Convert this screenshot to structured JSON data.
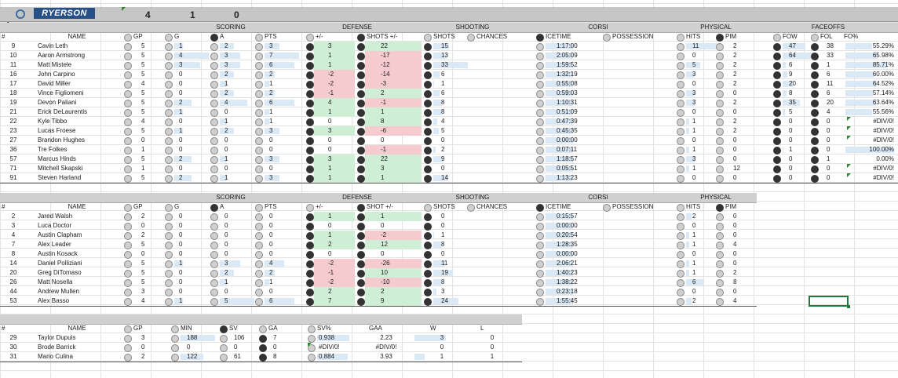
{
  "logo_text": "RYERSON",
  "top_numbers": [
    "4",
    "1",
    "0"
  ],
  "skaters_section": {
    "group_headers": [
      {
        "label": "SCORING"
      },
      {
        "label": "DEFENSE"
      },
      {
        "label": "SHOOTING"
      },
      {
        "label": "CORSI"
      },
      {
        "label": "PHYSICAL"
      },
      {
        "label": "FACEOFFS"
      }
    ],
    "columns": [
      "#",
      "NAME",
      "GP",
      "G",
      "A",
      "PTS",
      "+/-",
      "SHOTS +/-",
      "SHOTS",
      "CHANCES",
      "ICETIME",
      "POSSESSION",
      "HITS",
      "PIM",
      "FOW",
      "FOL",
      "FO%"
    ],
    "rows": [
      {
        "num": "9",
        "name": "Cavin Leth",
        "gp": "5",
        "g": "1",
        "a": "2",
        "pts": "3",
        "pm": "3",
        "spm": "22",
        "shots": "15",
        "icetime": "1:17:00",
        "hits": "11",
        "pim": "2",
        "fow": "47",
        "fol": "38",
        "fo": "55.29%"
      },
      {
        "num": "10",
        "name": "Aaron Armstrong",
        "gp": "5",
        "g": "4",
        "a": "3",
        "pts": "7",
        "pm": "1",
        "spm": "-17",
        "shots": "13",
        "icetime": "2:05:09",
        "hits": "0",
        "pim": "2",
        "fow": "64",
        "fol": "33",
        "fo": "65.98%"
      },
      {
        "num": "11",
        "name": "Matt Mistele",
        "gp": "5",
        "g": "3",
        "a": "3",
        "pts": "6",
        "pm": "1",
        "spm": "-12",
        "shots": "33",
        "icetime": "1:59:52",
        "hits": "5",
        "pim": "2",
        "fow": "6",
        "fol": "1",
        "fo": "85.71%"
      },
      {
        "num": "16",
        "name": "John Carpino",
        "gp": "5",
        "g": "0",
        "a": "2",
        "pts": "2",
        "pm": "-2",
        "spm": "-14",
        "shots": "6",
        "icetime": "1:32:19",
        "hits": "3",
        "pim": "2",
        "fow": "9",
        "fol": "6",
        "fo": "60.00%"
      },
      {
        "num": "17",
        "name": "David Miller",
        "gp": "4",
        "g": "0",
        "a": "1",
        "pts": "1",
        "pm": "-2",
        "spm": "-3",
        "shots": "1",
        "icetime": "0:55:08",
        "hits": "0",
        "pim": "2",
        "fow": "20",
        "fol": "11",
        "fo": "64.52%"
      },
      {
        "num": "18",
        "name": "Vince Figliomeni",
        "gp": "5",
        "g": "0",
        "a": "2",
        "pts": "2",
        "pm": "-1",
        "spm": "2",
        "shots": "6",
        "icetime": "0:59:03",
        "hits": "3",
        "pim": "0",
        "fow": "8",
        "fol": "6",
        "fo": "57.14%"
      },
      {
        "num": "19",
        "name": "Devon Paliani",
        "gp": "5",
        "g": "2",
        "a": "4",
        "pts": "6",
        "pm": "4",
        "spm": "-1",
        "shots": "8",
        "icetime": "1:10:31",
        "hits": "3",
        "pim": "2",
        "fow": "35",
        "fol": "20",
        "fo": "63.64%"
      },
      {
        "num": "21",
        "name": "Erick DeLaurentis",
        "gp": "5",
        "g": "1",
        "a": "0",
        "pts": "1",
        "pm": "1",
        "spm": "1",
        "shots": "8",
        "icetime": "0:51:09",
        "hits": "0",
        "pim": "0",
        "fow": "5",
        "fol": "4",
        "fo": "55.56%"
      },
      {
        "num": "22",
        "name": "Kyle Tibbo",
        "gp": "4",
        "g": "0",
        "a": "1",
        "pts": "1",
        "pm": "0",
        "spm": "8",
        "shots": "4",
        "icetime": "0:47:39",
        "hits": "1",
        "pim": "2",
        "fow": "0",
        "fol": "0",
        "fo": "#DIV/0!"
      },
      {
        "num": "23",
        "name": "Lucas Froese",
        "gp": "5",
        "g": "1",
        "a": "2",
        "pts": "3",
        "pm": "3",
        "spm": "-6",
        "shots": "5",
        "icetime": "0:45:35",
        "hits": "1",
        "pim": "2",
        "fow": "0",
        "fol": "0",
        "fo": "#DIV/0!"
      },
      {
        "num": "27",
        "name": "Brandon Hughes",
        "gp": "0",
        "g": "0",
        "a": "0",
        "pts": "0",
        "pm": "0",
        "spm": "0",
        "shots": "0",
        "icetime": "0:00:00",
        "hits": "0",
        "pim": "0",
        "fow": "0",
        "fol": "0",
        "fo": "#DIV/0!"
      },
      {
        "num": "36",
        "name": "Tre Folkes",
        "gp": "1",
        "g": "0",
        "a": "0",
        "pts": "0",
        "pm": "0",
        "spm": "-1",
        "shots": "2",
        "icetime": "0:07:11",
        "hits": "1",
        "pim": "0",
        "fow": "1",
        "fol": "0",
        "fo": "100.00%"
      },
      {
        "num": "57",
        "name": "Marcus Hinds",
        "gp": "5",
        "g": "2",
        "a": "1",
        "pts": "3",
        "pm": "3",
        "spm": "22",
        "shots": "9",
        "icetime": "1:18:57",
        "hits": "3",
        "pim": "0",
        "fow": "0",
        "fol": "1",
        "fo": "0.00%"
      },
      {
        "num": "71",
        "name": "Mitchell Skapski",
        "gp": "1",
        "g": "0",
        "a": "0",
        "pts": "0",
        "pm": "1",
        "spm": "3",
        "shots": "0",
        "icetime": "0:05:51",
        "hits": "1",
        "pim": "12",
        "fow": "0",
        "fol": "0",
        "fo": "#DIV/0!"
      },
      {
        "num": "91",
        "name": "Steven Harland",
        "gp": "5",
        "g": "2",
        "a": "1",
        "pts": "3",
        "pm": "1",
        "spm": "1",
        "shots": "14",
        "icetime": "1:13:23",
        "hits": "0",
        "pim": "0",
        "fow": "0",
        "fol": "0",
        "fo": "#DIV/0!"
      }
    ]
  },
  "defense_section": {
    "group_headers": [
      {
        "label": "SCORING"
      },
      {
        "label": "DEFENSE"
      },
      {
        "label": "SHOOTING"
      },
      {
        "label": "CORSI"
      },
      {
        "label": "PHYSICAL"
      }
    ],
    "columns": [
      "#",
      "NAME",
      "GP",
      "G",
      "A",
      "PTS",
      "+/-",
      "SHOT +/-",
      "SHOTS",
      "CHANCES",
      "ICETIME",
      "POSSESSION",
      "HITS",
      "PIM"
    ],
    "rows": [
      {
        "num": "2",
        "name": "Jared Walsh",
        "gp": "2",
        "g": "0",
        "a": "0",
        "pts": "0",
        "pm": "1",
        "spm": "1",
        "shots": "0",
        "icetime": "0:15:57",
        "hits": "2",
        "pim": "0"
      },
      {
        "num": "3",
        "name": "Luca Doctor",
        "gp": "0",
        "g": "0",
        "a": "0",
        "pts": "0",
        "pm": "0",
        "spm": "0",
        "shots": "0",
        "icetime": "0:00:00",
        "hits": "0",
        "pim": "0"
      },
      {
        "num": "4",
        "name": "Austin Clapham",
        "gp": "2",
        "g": "0",
        "a": "0",
        "pts": "0",
        "pm": "1",
        "spm": "-2",
        "shots": "1",
        "icetime": "0:20:54",
        "hits": "1",
        "pim": "0"
      },
      {
        "num": "7",
        "name": "Alex Leader",
        "gp": "5",
        "g": "0",
        "a": "0",
        "pts": "0",
        "pm": "2",
        "spm": "12",
        "shots": "8",
        "icetime": "1:28:35",
        "hits": "1",
        "pim": "4"
      },
      {
        "num": "8",
        "name": "Austin Kosack",
        "gp": "0",
        "g": "0",
        "a": "0",
        "pts": "0",
        "pm": "0",
        "spm": "0",
        "shots": "0",
        "icetime": "0:00:00",
        "hits": "0",
        "pim": "0"
      },
      {
        "num": "14",
        "name": "Daniel Polliziani",
        "gp": "5",
        "g": "1",
        "a": "3",
        "pts": "4",
        "pm": "-2",
        "spm": "-26",
        "shots": "11",
        "icetime": "2:06:21",
        "hits": "1",
        "pim": "0"
      },
      {
        "num": "20",
        "name": "Greg DiTomaso",
        "gp": "5",
        "g": "0",
        "a": "2",
        "pts": "2",
        "pm": "-1",
        "spm": "10",
        "shots": "19",
        "icetime": "1:40:23",
        "hits": "1",
        "pim": "2"
      },
      {
        "num": "26",
        "name": "Matt Nosella",
        "gp": "5",
        "g": "0",
        "a": "1",
        "pts": "1",
        "pm": "-2",
        "spm": "-10",
        "shots": "8",
        "icetime": "1:38:22",
        "hits": "6",
        "pim": "8"
      },
      {
        "num": "44",
        "name": "Andrew Mullen",
        "gp": "3",
        "g": "0",
        "a": "0",
        "pts": "0",
        "pm": "2",
        "spm": "2",
        "shots": "3",
        "icetime": "0:23:18",
        "hits": "0",
        "pim": "0"
      },
      {
        "num": "53",
        "name": "Alex Basso",
        "gp": "4",
        "g": "1",
        "a": "5",
        "pts": "6",
        "pm": "7",
        "spm": "9",
        "shots": "24",
        "icetime": "1:55:45",
        "hits": "2",
        "pim": "4"
      }
    ]
  },
  "goalie_section": {
    "columns": [
      "#",
      "NAME",
      "GP",
      "MIN",
      "SV",
      "GA",
      "SV%",
      "GAA",
      "W",
      "L"
    ],
    "rows": [
      {
        "num": "29",
        "name": "Taylor Dupuis",
        "gp": "3",
        "min": "188",
        "sv": "106",
        "ga": "7",
        "svp": "0.938",
        "gaa": "2.23",
        "w": "3",
        "l": "0"
      },
      {
        "num": "30",
        "name": "Brode Barrick",
        "gp": "0",
        "min": "0",
        "sv": "0",
        "ga": "0",
        "svp": "#DIV/0!",
        "gaa": "#DIV/0!",
        "w": "0",
        "l": "0"
      },
      {
        "num": "31",
        "name": "Mario Culina",
        "gp": "2",
        "min": "122",
        "sv": "61",
        "ga": "8",
        "svp": "0.884",
        "gaa": "3.93",
        "w": "1",
        "l": "1"
      }
    ]
  },
  "colors": {
    "header_band": "#c6c6c6",
    "positive_fill": "#cfeed6",
    "negative_fill": "#f6cbcf",
    "data_bar": "#dbe9f7",
    "logo_bg": "#274f88",
    "selection": "#1d7a3a"
  },
  "icons": {
    "corner_icon": "edit-pencil-icon",
    "section_icons": [
      "heart-icon",
      "shield-icon"
    ]
  }
}
